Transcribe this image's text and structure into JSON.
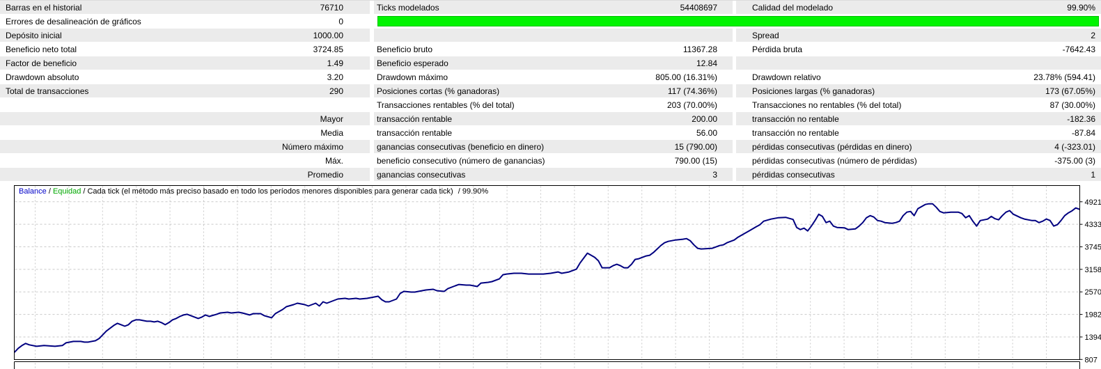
{
  "report": {
    "rows": [
      {
        "shade": true,
        "cells": [
          {
            "l": "Barras en el historial",
            "v": "76710"
          },
          {
            "l": "Ticks modelados",
            "v": "54408697"
          },
          {
            "l": "Calidad del modelado",
            "v": "99.90%"
          }
        ]
      },
      {
        "shade": false,
        "green_bar": true,
        "cells": [
          {
            "l": "Errores de desalineación de gráficos",
            "v": "0"
          }
        ]
      },
      {
        "shade": true,
        "cells": [
          {
            "l": "Depósito inicial",
            "v": "1000.00"
          },
          {
            "l": "",
            "v": ""
          },
          {
            "l": "Spread",
            "v": "2"
          }
        ]
      },
      {
        "shade": false,
        "cells": [
          {
            "l": "Beneficio neto total",
            "v": "3724.85"
          },
          {
            "l": "Beneficio bruto",
            "v": "11367.28"
          },
          {
            "l": "Pérdida bruta",
            "v": "-7642.43"
          }
        ]
      },
      {
        "shade": true,
        "cells": [
          {
            "l": "Factor de beneficio",
            "v": "1.49"
          },
          {
            "l": "Beneficio esperado",
            "v": "12.84"
          },
          {
            "l": "",
            "v": ""
          }
        ]
      },
      {
        "shade": false,
        "cells": [
          {
            "l": "Drawdown absoluto",
            "v": "3.20"
          },
          {
            "l": "Drawdown máximo",
            "v": "805.00 (16.31%)"
          },
          {
            "l": "Drawdown relativo",
            "v": "23.78% (594.41)"
          }
        ]
      },
      {
        "shade": true,
        "cells": [
          {
            "l": "Total de transacciones",
            "v": "290"
          },
          {
            "l": "Posiciones cortas (% ganadoras)",
            "v": "117 (74.36%)"
          },
          {
            "l": "Posiciones largas (% ganadoras)",
            "v": "173 (67.05%)"
          }
        ]
      },
      {
        "shade": false,
        "cells": [
          {
            "l": "",
            "v": ""
          },
          {
            "l": "Transacciones rentables (% del total)",
            "v": "203 (70.00%)"
          },
          {
            "l": "Transacciones no rentables (% del total)",
            "v": "87 (30.00%)"
          }
        ]
      },
      {
        "shade": true,
        "cells": [
          {
            "l": "",
            "v": "Mayor"
          },
          {
            "l": "transacción rentable",
            "v": "200.00"
          },
          {
            "l": "transacción no rentable",
            "v": "-182.36"
          }
        ]
      },
      {
        "shade": false,
        "cells": [
          {
            "l": "",
            "v": "Media"
          },
          {
            "l": "transacción rentable",
            "v": "56.00"
          },
          {
            "l": "transacción no rentable",
            "v": "-87.84"
          }
        ]
      },
      {
        "shade": true,
        "cells": [
          {
            "l": "",
            "v": "Número máximo"
          },
          {
            "l": "ganancias consecutivas (beneficio en dinero)",
            "v": "15 (790.00)"
          },
          {
            "l": "pérdidas consecutivas (pérdidas en dinero)",
            "v": "4 (-323.01)"
          }
        ]
      },
      {
        "shade": false,
        "cells": [
          {
            "l": "",
            "v": "Máx."
          },
          {
            "l": "beneficio consecutivo (número de ganancias)",
            "v": "790.00 (15)"
          },
          {
            "l": "pérdidas consecutivas (número de pérdidas)",
            "v": "-375.00 (3)"
          }
        ]
      },
      {
        "shade": true,
        "cells": [
          {
            "l": "",
            "v": "Promedio"
          },
          {
            "l": "ganancias consecutivas",
            "v": "3"
          },
          {
            "l": "pérdidas consecutivas",
            "v": "1"
          }
        ]
      }
    ]
  },
  "chart": {
    "legend": {
      "balance": "Balance",
      "sep": " / ",
      "equity": "Equidad",
      "model": "Cada tick (el método más preciso basado en todo los períodos menores disponibles para generar cada tick)",
      "quality": "/ 99.90%"
    },
    "y_labels": [
      "4921",
      "4333",
      "3745",
      "3158",
      "2570",
      "1982",
      "1394",
      "807"
    ],
    "colors": {
      "balance_line": "#000080",
      "balance_text": "#0000c8",
      "equity_text": "#00a800",
      "grid": "#c9c9c9",
      "border": "#000000",
      "green_bar": "#00f400",
      "row_shade": "#ebebeb"
    }
  },
  "chart_data": {
    "type": "line",
    "title": "Balance / Equidad / Cada tick (el método más preciso basado en todo los períodos menores disponibles para generar cada tick) / 99.90%",
    "xlabel": "",
    "ylabel": "",
    "xlim": [
      0,
      290
    ],
    "ylim": [
      807,
      5330
    ],
    "y_ticks": [
      4921,
      4333,
      3745,
      3158,
      2570,
      1982,
      1394,
      807
    ],
    "grid": true,
    "legend_position": "top-left",
    "series": [
      {
        "name": "Balance",
        "points": [
          [
            0,
            1000
          ],
          [
            1,
            1100
          ],
          [
            2,
            1170
          ],
          [
            3,
            1224
          ],
          [
            4,
            1188
          ],
          [
            6,
            1151
          ],
          [
            8,
            1170
          ],
          [
            11,
            1151
          ],
          [
            13,
            1170
          ],
          [
            14,
            1242
          ],
          [
            16,
            1278
          ],
          [
            18,
            1278
          ],
          [
            19,
            1260
          ],
          [
            20,
            1260
          ],
          [
            22,
            1296
          ],
          [
            23,
            1351
          ],
          [
            24,
            1450
          ],
          [
            25,
            1550
          ],
          [
            26,
            1622
          ],
          [
            27,
            1695
          ],
          [
            28,
            1749
          ],
          [
            29,
            1713
          ],
          [
            30,
            1676
          ],
          [
            31,
            1713
          ],
          [
            32,
            1804
          ],
          [
            33,
            1840
          ],
          [
            34,
            1840
          ],
          [
            35,
            1822
          ],
          [
            36,
            1804
          ],
          [
            37,
            1804
          ],
          [
            38,
            1786
          ],
          [
            39,
            1804
          ],
          [
            40,
            1767
          ],
          [
            41,
            1713
          ],
          [
            42,
            1767
          ],
          [
            43,
            1840
          ],
          [
            44,
            1876
          ],
          [
            45,
            1930
          ],
          [
            46,
            1967
          ],
          [
            47,
            1985
          ],
          [
            48,
            1949
          ],
          [
            50,
            1876
          ],
          [
            51,
            1913
          ],
          [
            52,
            1967
          ],
          [
            53,
            1930
          ],
          [
            55,
            1985
          ],
          [
            56,
            2021
          ],
          [
            58,
            2039
          ],
          [
            59,
            2021
          ],
          [
            61,
            2039
          ],
          [
            62,
            2021
          ],
          [
            64,
            1967
          ],
          [
            65,
            2003
          ],
          [
            67,
            2003
          ],
          [
            68,
            1949
          ],
          [
            70,
            1895
          ],
          [
            71,
            2003
          ],
          [
            73,
            2111
          ],
          [
            74,
            2184
          ],
          [
            76,
            2239
          ],
          [
            77,
            2275
          ],
          [
            79,
            2239
          ],
          [
            80,
            2202
          ],
          [
            82,
            2275
          ],
          [
            83,
            2202
          ],
          [
            84,
            2311
          ],
          [
            85,
            2275
          ],
          [
            87,
            2347
          ],
          [
            88,
            2384
          ],
          [
            90,
            2402
          ],
          [
            91,
            2384
          ],
          [
            93,
            2402
          ],
          [
            94,
            2384
          ],
          [
            96,
            2402
          ],
          [
            97,
            2420
          ],
          [
            99,
            2456
          ],
          [
            100,
            2366
          ],
          [
            101,
            2311
          ],
          [
            102,
            2311
          ],
          [
            104,
            2384
          ],
          [
            105,
            2529
          ],
          [
            106,
            2583
          ],
          [
            108,
            2565
          ],
          [
            109,
            2565
          ],
          [
            111,
            2601
          ],
          [
            112,
            2619
          ],
          [
            114,
            2637
          ],
          [
            115,
            2601
          ],
          [
            117,
            2583
          ],
          [
            118,
            2655
          ],
          [
            120,
            2728
          ],
          [
            121,
            2764
          ],
          [
            123,
            2746
          ],
          [
            124,
            2746
          ],
          [
            126,
            2710
          ],
          [
            127,
            2800
          ],
          [
            129,
            2819
          ],
          [
            130,
            2837
          ],
          [
            132,
            2909
          ],
          [
            133,
            3018
          ],
          [
            134,
            3036
          ],
          [
            136,
            3055
          ],
          [
            138,
            3055
          ],
          [
            140,
            3036
          ],
          [
            142,
            3036
          ],
          [
            144,
            3036
          ],
          [
            146,
            3055
          ],
          [
            148,
            3091
          ],
          [
            149,
            3055
          ],
          [
            151,
            3091
          ],
          [
            153,
            3163
          ],
          [
            154,
            3326
          ],
          [
            156,
            3580
          ],
          [
            157,
            3526
          ],
          [
            158,
            3471
          ],
          [
            159,
            3381
          ],
          [
            160,
            3200
          ],
          [
            162,
            3200
          ],
          [
            163,
            3254
          ],
          [
            164,
            3290
          ],
          [
            165,
            3254
          ],
          [
            166,
            3200
          ],
          [
            167,
            3200
          ],
          [
            168,
            3290
          ],
          [
            169,
            3417
          ],
          [
            170,
            3435
          ],
          [
            171,
            3471
          ],
          [
            172,
            3508
          ],
          [
            173,
            3526
          ],
          [
            174,
            3598
          ],
          [
            175,
            3689
          ],
          [
            176,
            3779
          ],
          [
            177,
            3852
          ],
          [
            178,
            3888
          ],
          [
            180,
            3924
          ],
          [
            182,
            3943
          ],
          [
            183,
            3961
          ],
          [
            184,
            3906
          ],
          [
            185,
            3797
          ],
          [
            186,
            3707
          ],
          [
            187,
            3689
          ],
          [
            190,
            3707
          ],
          [
            191,
            3743
          ],
          [
            192,
            3779
          ],
          [
            193,
            3797
          ],
          [
            194,
            3852
          ],
          [
            195,
            3888
          ],
          [
            196,
            3924
          ],
          [
            197,
            3997
          ],
          [
            198,
            4051
          ],
          [
            199,
            4106
          ],
          [
            200,
            4160
          ],
          [
            202,
            4270
          ],
          [
            203,
            4323
          ],
          [
            204,
            4414
          ],
          [
            206,
            4468
          ],
          [
            208,
            4505
          ],
          [
            210,
            4514
          ],
          [
            212,
            4460
          ],
          [
            213,
            4251
          ],
          [
            214,
            4196
          ],
          [
            215,
            4232
          ],
          [
            216,
            4160
          ],
          [
            217,
            4287
          ],
          [
            218,
            4432
          ],
          [
            219,
            4595
          ],
          [
            220,
            4541
          ],
          [
            221,
            4378
          ],
          [
            222,
            4414
          ],
          [
            223,
            4287
          ],
          [
            224,
            4251
          ],
          [
            226,
            4241
          ],
          [
            227,
            4196
          ],
          [
            229,
            4214
          ],
          [
            230,
            4287
          ],
          [
            231,
            4378
          ],
          [
            232,
            4505
          ],
          [
            233,
            4560
          ],
          [
            234,
            4523
          ],
          [
            235,
            4432
          ],
          [
            236,
            4414
          ],
          [
            237,
            4378
          ],
          [
            239,
            4360
          ],
          [
            240,
            4378
          ],
          [
            241,
            4414
          ],
          [
            242,
            4560
          ],
          [
            243,
            4650
          ],
          [
            244,
            4668
          ],
          [
            245,
            4560
          ],
          [
            246,
            4740
          ],
          [
            247,
            4795
          ],
          [
            248,
            4850
          ],
          [
            249,
            4868
          ],
          [
            250,
            4868
          ],
          [
            251,
            4777
          ],
          [
            252,
            4668
          ],
          [
            253,
            4632
          ],
          [
            255,
            4650
          ],
          [
            257,
            4650
          ],
          [
            258,
            4614
          ],
          [
            259,
            4505
          ],
          [
            260,
            4560
          ],
          [
            261,
            4410
          ],
          [
            262,
            4287
          ],
          [
            263,
            4430
          ],
          [
            265,
            4468
          ],
          [
            266,
            4540
          ],
          [
            267,
            4480
          ],
          [
            268,
            4450
          ],
          [
            269,
            4560
          ],
          [
            270,
            4650
          ],
          [
            271,
            4690
          ],
          [
            272,
            4595
          ],
          [
            273,
            4550
          ],
          [
            274,
            4505
          ],
          [
            275,
            4470
          ],
          [
            277,
            4432
          ],
          [
            278,
            4432
          ],
          [
            279,
            4378
          ],
          [
            280,
            4414
          ],
          [
            281,
            4470
          ],
          [
            282,
            4432
          ],
          [
            283,
            4287
          ],
          [
            284,
            4323
          ],
          [
            285,
            4432
          ],
          [
            286,
            4560
          ],
          [
            287,
            4632
          ],
          [
            288,
            4687
          ],
          [
            289,
            4760
          ],
          [
            290,
            4724.85
          ]
        ]
      }
    ]
  }
}
